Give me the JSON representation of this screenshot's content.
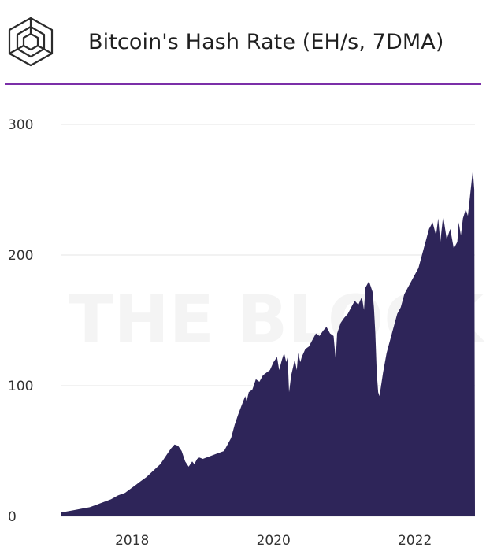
{
  "header": {
    "title": "Bitcoin's Hash Rate (EH/s, 7DMA)",
    "logo_icon": "the-block-cube-logo-icon"
  },
  "chart_data": {
    "type": "area",
    "title": "Bitcoin's Hash Rate (EH/s, 7DMA)",
    "xlabel": "",
    "ylabel": "",
    "xlim": [
      2017.0,
      2022.85
    ],
    "ylim": [
      0,
      300
    ],
    "yticks": [
      0,
      100,
      200,
      300
    ],
    "xticks": [
      {
        "value": 2018,
        "label": "2018"
      },
      {
        "value": 2020,
        "label": "2020"
      },
      {
        "value": 2022,
        "label": "2022"
      }
    ],
    "grid": true,
    "legend": "none",
    "watermark": "THE BLOCK",
    "colors": {
      "fill": "#2e2559",
      "grid": "#e6e6e6",
      "rule": "#7b2fa8"
    },
    "series": [
      {
        "x": [
          2017.0,
          2017.1,
          2017.2,
          2017.3,
          2017.4,
          2017.5,
          2017.6,
          2017.7,
          2017.8,
          2017.9,
          2017.95,
          2018.0,
          2018.05,
          2018.1,
          2018.2,
          2018.3,
          2018.4,
          2018.5,
          2018.55,
          2018.6,
          2018.65,
          2018.7,
          2018.75,
          2018.8,
          2018.85,
          2018.88,
          2018.92,
          2018.95,
          2019.0,
          2019.1,
          2019.2,
          2019.3,
          2019.35,
          2019.4,
          2019.45,
          2019.5,
          2019.55,
          2019.6,
          2019.62,
          2019.65,
          2019.7,
          2019.72,
          2019.75,
          2019.8,
          2019.85,
          2019.9,
          2019.95,
          2020.0,
          2020.05,
          2020.08,
          2020.12,
          2020.15,
          2020.18,
          2020.2,
          2020.22,
          2020.25,
          2020.28,
          2020.3,
          2020.33,
          2020.35,
          2020.38,
          2020.4,
          2020.45,
          2020.5,
          2020.55,
          2020.6,
          2020.65,
          2020.7,
          2020.75,
          2020.8,
          2020.85,
          2020.88,
          2020.9,
          2020.95,
          2021.0,
          2021.05,
          2021.1,
          2021.15,
          2021.2,
          2021.25,
          2021.28,
          2021.3,
          2021.35,
          2021.4,
          2021.42,
          2021.44,
          2021.46,
          2021.48,
          2021.5,
          2021.55,
          2021.6,
          2021.65,
          2021.7,
          2021.75,
          2021.8,
          2021.85,
          2021.9,
          2021.95,
          2022.0,
          2022.05,
          2022.1,
          2022.15,
          2022.2,
          2022.25,
          2022.3,
          2022.33,
          2022.36,
          2022.4,
          2022.45,
          2022.5,
          2022.55,
          2022.6,
          2022.62,
          2022.65,
          2022.68,
          2022.72,
          2022.75,
          2022.78,
          2022.8,
          2022.82,
          2022.84,
          2022.85
        ],
        "values": [
          3,
          4,
          5,
          6,
          7,
          9,
          11,
          13,
          16,
          18,
          20,
          22,
          24,
          26,
          30,
          35,
          40,
          48,
          52,
          55,
          54,
          50,
          42,
          38,
          42,
          40,
          44,
          45,
          44,
          46,
          48,
          50,
          55,
          60,
          70,
          78,
          85,
          92,
          88,
          95,
          97,
          100,
          105,
          103,
          108,
          110,
          112,
          118,
          122,
          112,
          120,
          125,
          118,
          122,
          95,
          108,
          115,
          120,
          112,
          125,
          118,
          122,
          128,
          130,
          135,
          140,
          138,
          142,
          145,
          140,
          138,
          120,
          140,
          148,
          152,
          155,
          160,
          165,
          162,
          168,
          158,
          175,
          180,
          172,
          160,
          140,
          110,
          95,
          92,
          110,
          125,
          135,
          145,
          155,
          160,
          170,
          175,
          180,
          185,
          190,
          200,
          210,
          220,
          225,
          215,
          228,
          210,
          230,
          212,
          220,
          205,
          210,
          225,
          215,
          228,
          235,
          230,
          245,
          255,
          265,
          250,
          0
        ]
      }
    ]
  }
}
